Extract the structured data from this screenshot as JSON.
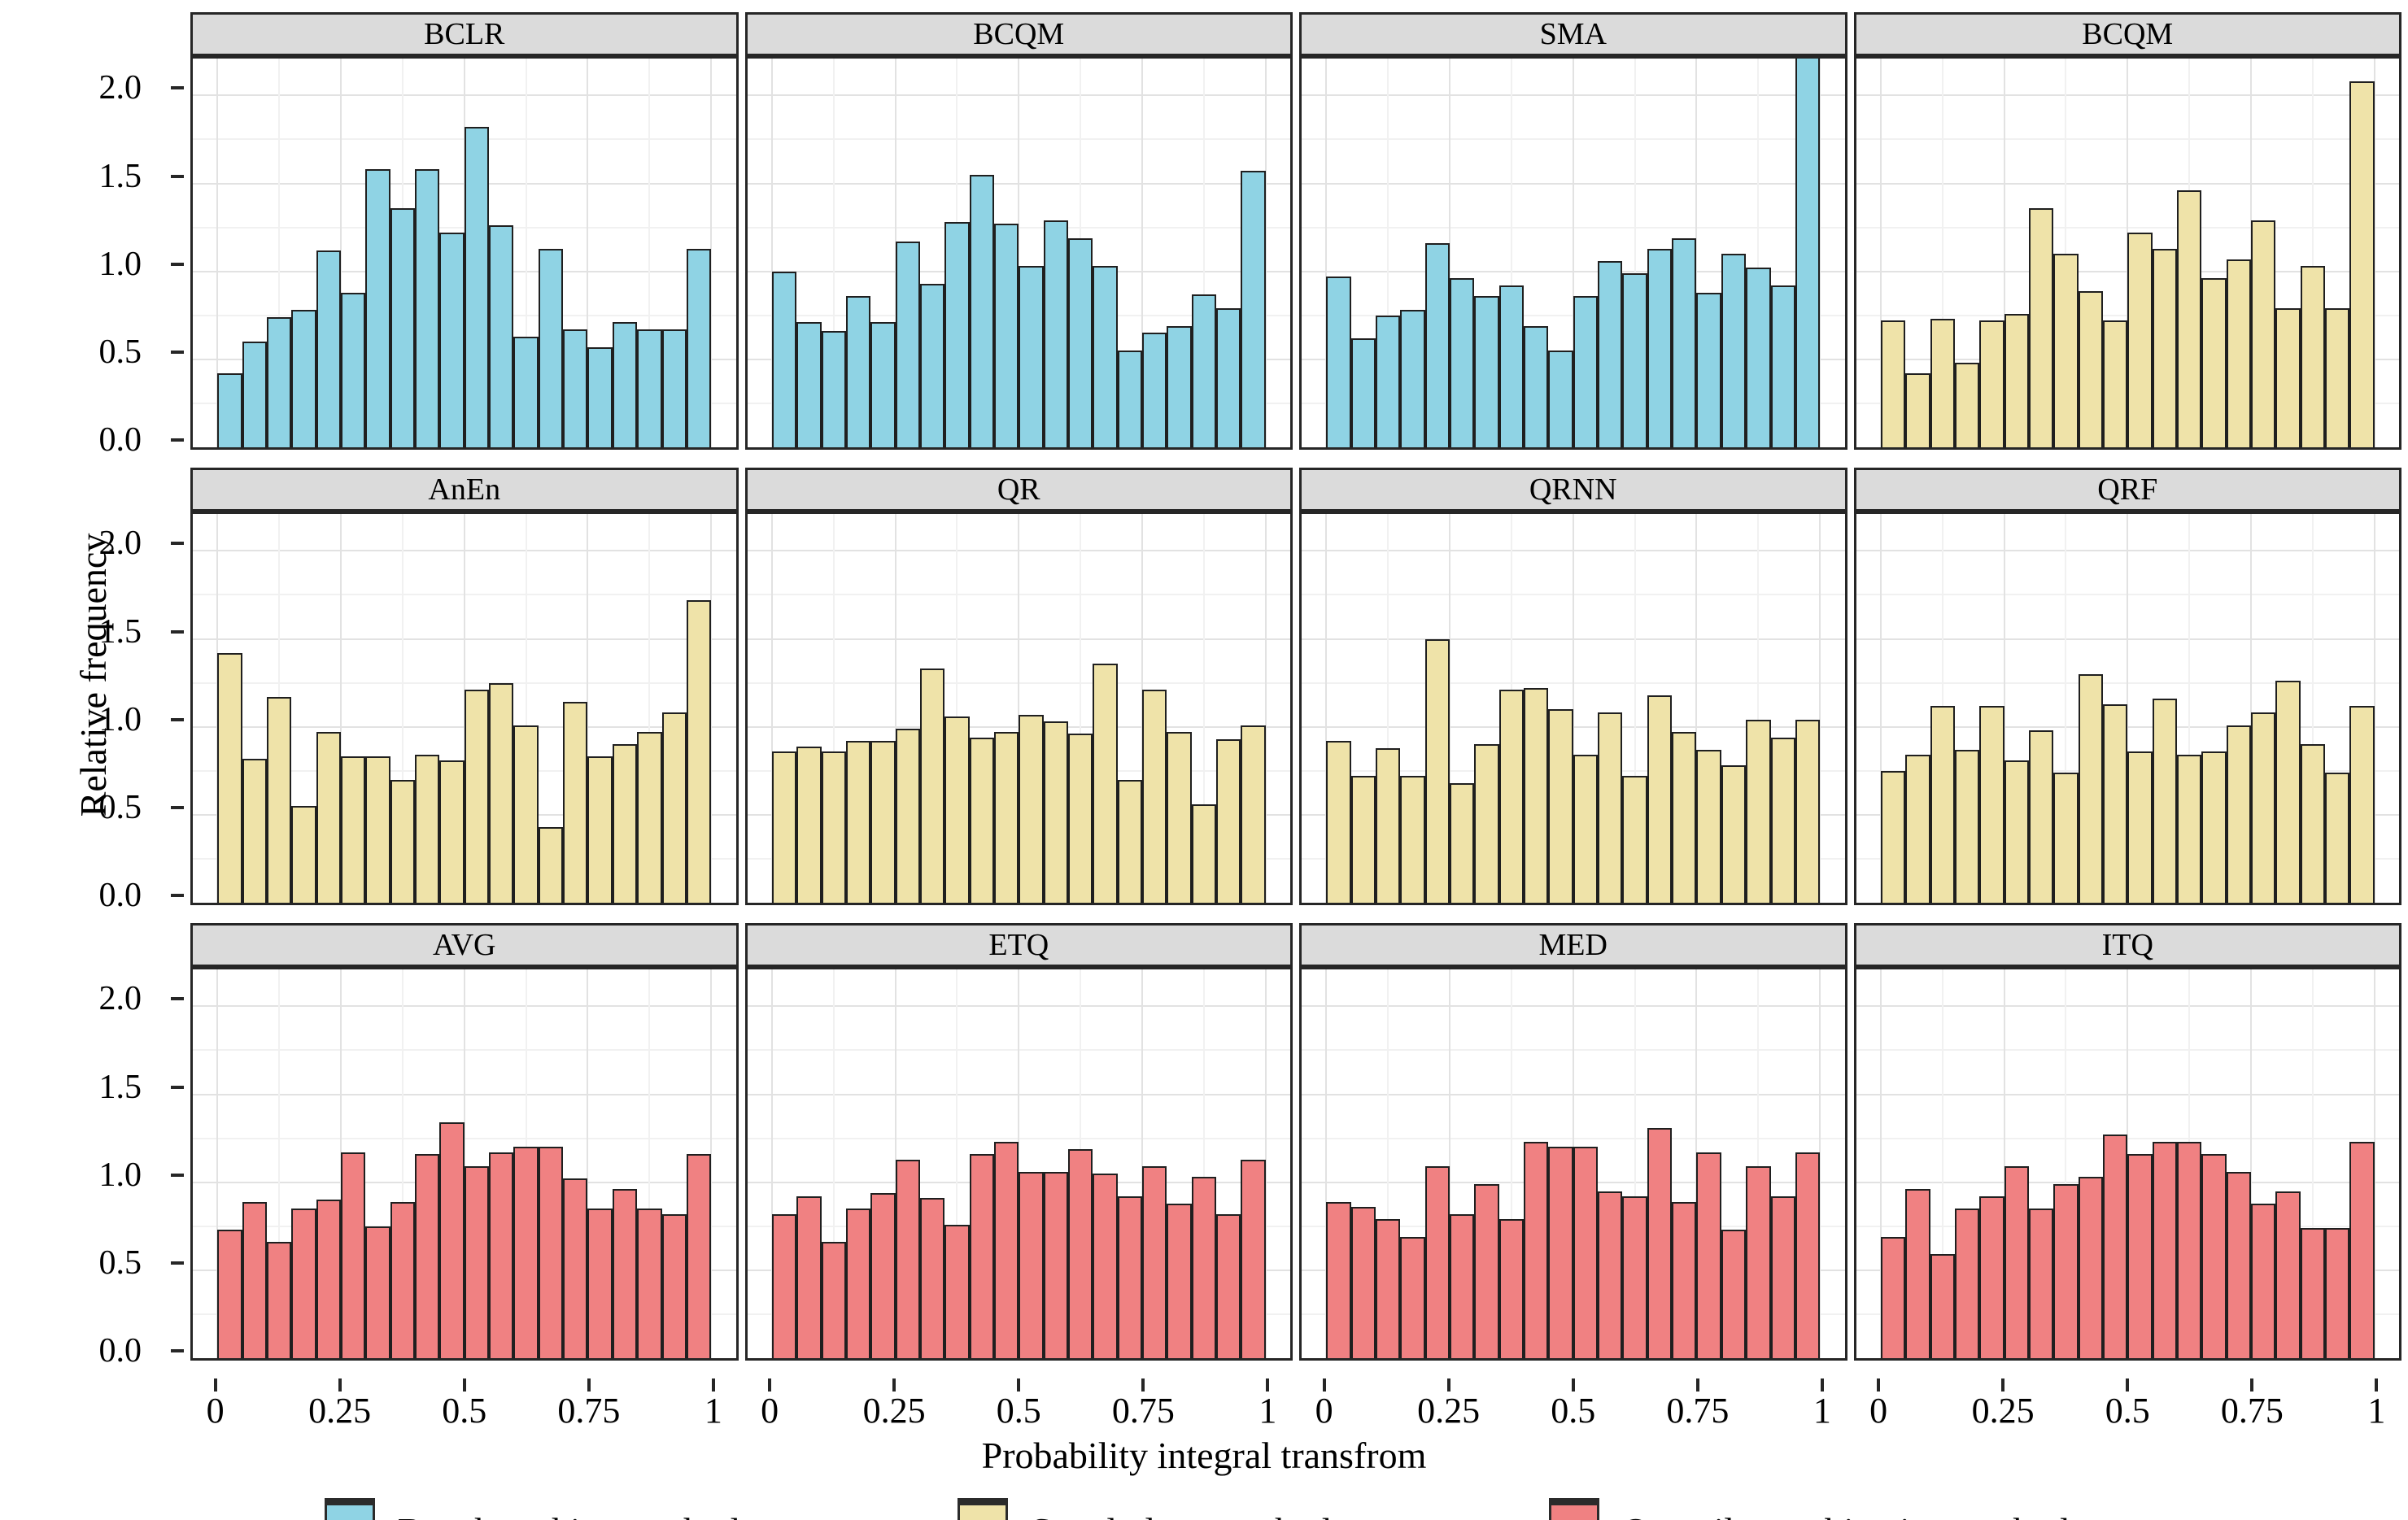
{
  "figure": {
    "ylabel": "Relative frequency",
    "xlabel": "Probability integral transfrom"
  },
  "legend": {
    "items": [
      {
        "label": "Benchmarking methods",
        "color": "#8fd3e4"
      },
      {
        "label": "Stand-alone methods",
        "color": "#efe3a9"
      },
      {
        "label": "Quantile combination methods",
        "color": "#f08182"
      }
    ]
  },
  "colors": {
    "benchmarking": "#8fd3e4",
    "standalone": "#efe3a9",
    "quantile_combination": "#f08182",
    "strip_background": "#dbdbdb",
    "panel_border": "#262626",
    "grid_major": "#e2e2e2",
    "grid_minor": "#f1f1f1"
  },
  "chart_data": {
    "type": "bar",
    "subtype": "faceted-histogram",
    "title": "",
    "xlabel": "Probability integral transfrom",
    "ylabel": "Relative frequency",
    "x_ticks": [
      "0",
      "0.25",
      "0.5",
      "0.75",
      "1"
    ],
    "x_tick_values": [
      0,
      0.25,
      0.5,
      0.75,
      1
    ],
    "y_ticks": [
      "0.0",
      "0.5",
      "1.0",
      "1.5",
      "2.0"
    ],
    "y_tick_values": [
      0,
      0.5,
      1,
      1.5,
      2
    ],
    "ylim": [
      0,
      2.21
    ],
    "x_range": [
      0,
      1
    ],
    "x_expansion": 0.05,
    "bins": 20,
    "bin_width": 0.05,
    "grid": "on",
    "legend_position": "bottom",
    "layout": {
      "rows": 3,
      "cols": 4
    },
    "panels": [
      {
        "title": "BCLR",
        "group": "Benchmarking methods",
        "color": "#8fd3e4",
        "values": [
          0.42,
          0.6,
          0.74,
          0.78,
          1.12,
          0.88,
          1.58,
          1.36,
          1.58,
          1.22,
          1.82,
          1.26,
          0.63,
          1.13,
          0.67,
          0.57,
          0.71,
          0.67,
          0.67,
          1.13
        ]
      },
      {
        "title": "BCQM",
        "group": "Benchmarking methods",
        "color": "#8fd3e4",
        "values": [
          1.0,
          0.71,
          0.66,
          0.86,
          0.71,
          1.17,
          0.93,
          1.28,
          1.55,
          1.27,
          1.03,
          1.29,
          1.19,
          1.03,
          0.55,
          0.65,
          0.69,
          0.87,
          0.79,
          1.57
        ]
      },
      {
        "title": "SMA",
        "group": "Benchmarking methods",
        "color": "#8fd3e4",
        "values": [
          0.97,
          0.62,
          0.75,
          0.78,
          1.16,
          0.96,
          0.86,
          0.92,
          0.69,
          0.55,
          0.86,
          1.06,
          0.99,
          1.13,
          1.19,
          0.88,
          1.1,
          1.02,
          0.92,
          2.35
        ],
        "clipped_bars": [
          19
        ]
      },
      {
        "title": "BCQM",
        "group": "Stand-alone methods",
        "color": "#efe3a9",
        "values": [
          0.72,
          0.42,
          0.73,
          0.48,
          0.72,
          0.76,
          1.36,
          1.1,
          0.89,
          0.72,
          1.22,
          1.13,
          1.46,
          0.96,
          1.07,
          1.29,
          0.79,
          1.03,
          0.79,
          2.08
        ]
      },
      {
        "title": "AnEn",
        "group": "Stand-alone methods",
        "color": "#efe3a9",
        "values": [
          1.42,
          0.82,
          1.17,
          0.55,
          0.97,
          0.83,
          0.83,
          0.7,
          0.84,
          0.81,
          1.21,
          1.25,
          1.01,
          0.43,
          1.14,
          0.83,
          0.9,
          0.97,
          1.08,
          1.72
        ]
      },
      {
        "title": "QR",
        "group": "Stand-alone methods",
        "color": "#efe3a9",
        "values": [
          0.86,
          0.89,
          0.86,
          0.92,
          0.92,
          0.99,
          1.33,
          1.06,
          0.94,
          0.97,
          1.07,
          1.03,
          0.96,
          1.36,
          0.7,
          1.21,
          0.97,
          0.56,
          0.93,
          1.01
        ]
      },
      {
        "title": "QRNN",
        "group": "Stand-alone methods",
        "color": "#efe3a9",
        "values": [
          0.92,
          0.72,
          0.88,
          0.72,
          1.5,
          0.68,
          0.9,
          1.21,
          1.22,
          1.1,
          0.84,
          1.08,
          0.72,
          1.18,
          0.97,
          0.87,
          0.78,
          1.04,
          0.94,
          1.04
        ]
      },
      {
        "title": "QRF",
        "group": "Stand-alone methods",
        "color": "#efe3a9",
        "values": [
          0.75,
          0.84,
          1.12,
          0.87,
          1.12,
          0.81,
          0.98,
          0.74,
          1.3,
          1.13,
          0.86,
          1.16,
          0.84,
          0.86,
          1.01,
          1.08,
          1.26,
          0.9,
          0.74,
          1.12
        ]
      },
      {
        "title": "AVG",
        "group": "Quantile combination methods",
        "color": "#f08182",
        "values": [
          0.73,
          0.89,
          0.66,
          0.85,
          0.9,
          1.17,
          0.75,
          0.89,
          1.16,
          1.34,
          1.09,
          1.17,
          1.2,
          1.2,
          1.02,
          0.85,
          0.96,
          0.85,
          0.82,
          1.16
        ]
      },
      {
        "title": "ETQ",
        "group": "Quantile combination methods",
        "color": "#f08182",
        "values": [
          0.82,
          0.92,
          0.66,
          0.85,
          0.94,
          1.13,
          0.91,
          0.76,
          1.16,
          1.23,
          1.06,
          1.06,
          1.19,
          1.05,
          0.92,
          1.09,
          0.88,
          1.03,
          0.82,
          1.13
        ]
      },
      {
        "title": "MED",
        "group": "Quantile combination methods",
        "color": "#f08182",
        "values": [
          0.89,
          0.86,
          0.79,
          0.69,
          1.09,
          0.82,
          0.99,
          0.79,
          1.23,
          1.2,
          1.2,
          0.95,
          0.92,
          1.31,
          0.89,
          1.17,
          0.73,
          1.09,
          0.92,
          1.17
        ]
      },
      {
        "title": "ITQ",
        "group": "Quantile combination methods",
        "color": "#f08182",
        "values": [
          0.69,
          0.96,
          0.59,
          0.85,
          0.92,
          1.09,
          0.85,
          0.99,
          1.03,
          1.27,
          1.16,
          1.23,
          1.23,
          1.16,
          1.06,
          0.88,
          0.95,
          0.74,
          0.74,
          1.23
        ]
      }
    ]
  }
}
